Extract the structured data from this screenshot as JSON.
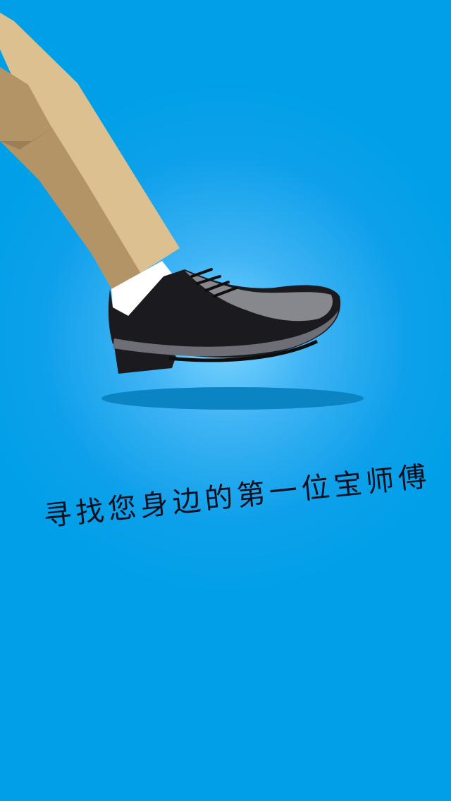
{
  "screen": {
    "background_color": "#009fe8",
    "glow_color": "#7fd6ff"
  },
  "illustration": {
    "subject": "leg-with-dress-shoe",
    "trouser_color": "#dcc08f",
    "trouser_shade_color": "#b39466",
    "sock_color": "#ffffff",
    "shoe_color": "#1b1b1f",
    "shoe_highlight_color": "#9a9aa2",
    "shadow_color": "#0b84c4"
  },
  "slogan": {
    "text": "寻找您身边的第一位宝师傅"
  }
}
